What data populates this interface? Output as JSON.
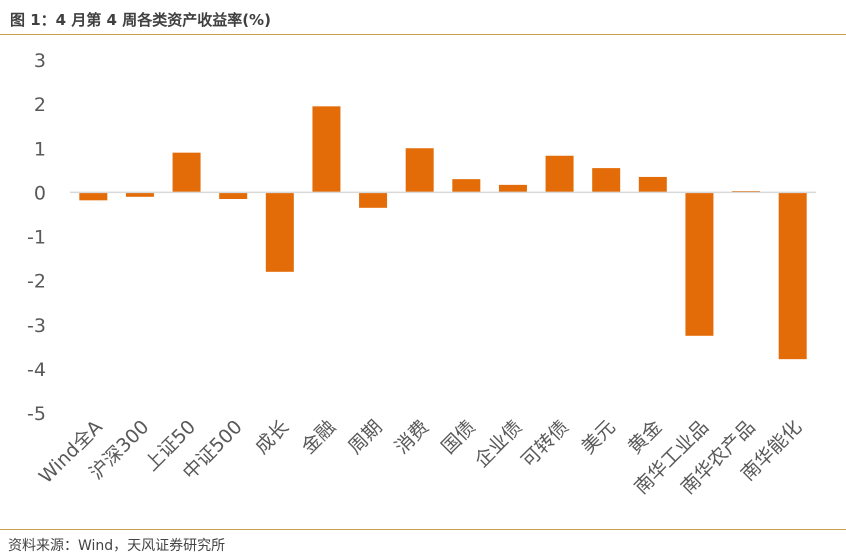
{
  "header": {
    "title": "图 1：4 月第 4 周各类资产收益率(%)"
  },
  "footer": {
    "source": "资料来源：Wind，天风证券研究所"
  },
  "colors": {
    "bar": "#E36C09",
    "axis": "#D9D9D9",
    "rule": "#C9A04A"
  },
  "chart_data": {
    "type": "bar",
    "title": "",
    "xlabel": "",
    "ylabel": "",
    "ylim": [
      -5,
      3
    ],
    "yticks": [
      3,
      2,
      1,
      0,
      -1,
      -2,
      -3,
      -4,
      -5
    ],
    "grid": false,
    "legend": "none",
    "categories": [
      "Wind全A",
      "沪深300",
      "上证50",
      "中证500",
      "成长",
      "金融",
      "周期",
      "消费",
      "国债",
      "企业债",
      "可转债",
      "美元",
      "黄金",
      "南华工业品",
      "南华农产品",
      "南华能化"
    ],
    "values": [
      -0.18,
      -0.1,
      0.9,
      -0.15,
      -1.8,
      1.95,
      -0.35,
      1.0,
      0.3,
      0.17,
      0.83,
      0.55,
      0.35,
      -3.25,
      0.03,
      -3.78
    ]
  }
}
